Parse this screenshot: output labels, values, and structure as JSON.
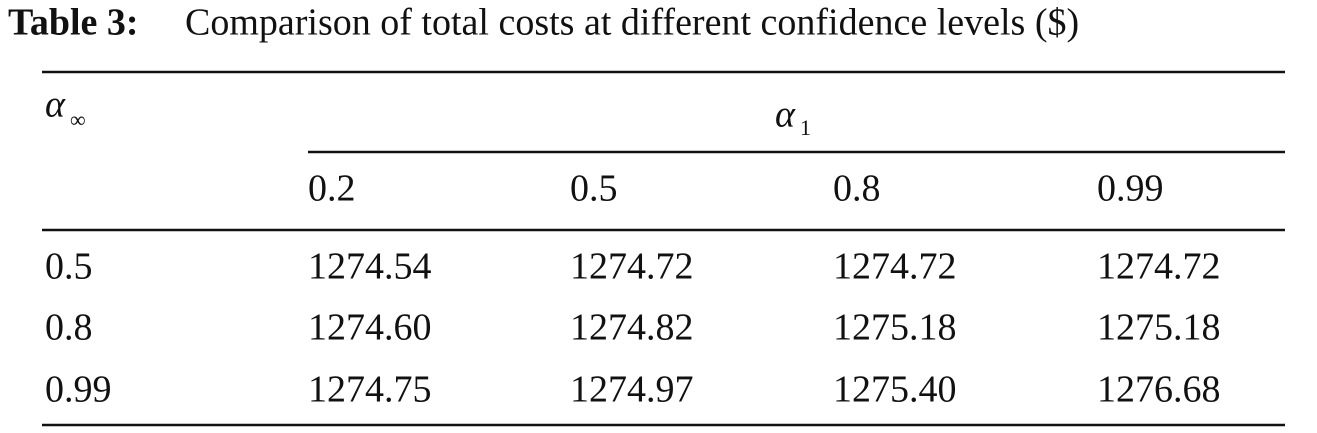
{
  "caption": {
    "label": "Table 3:",
    "text": "Comparison of total costs at different confidence levels ($)"
  },
  "table": {
    "row_header": {
      "symbol": "α",
      "subscript": "∞"
    },
    "column_group": {
      "symbol": "α",
      "subscript": "1"
    },
    "columns": [
      "0.2",
      "0.5",
      "0.8",
      "0.99"
    ],
    "rows": [
      [
        "0.5",
        "1274.54",
        "1274.72",
        "1274.72",
        "1274.72"
      ],
      [
        "0.8",
        "1274.60",
        "1274.82",
        "1275.18",
        "1275.18"
      ],
      [
        "0.99",
        "1274.75",
        "1274.97",
        "1275.40",
        "1276.68"
      ]
    ]
  }
}
